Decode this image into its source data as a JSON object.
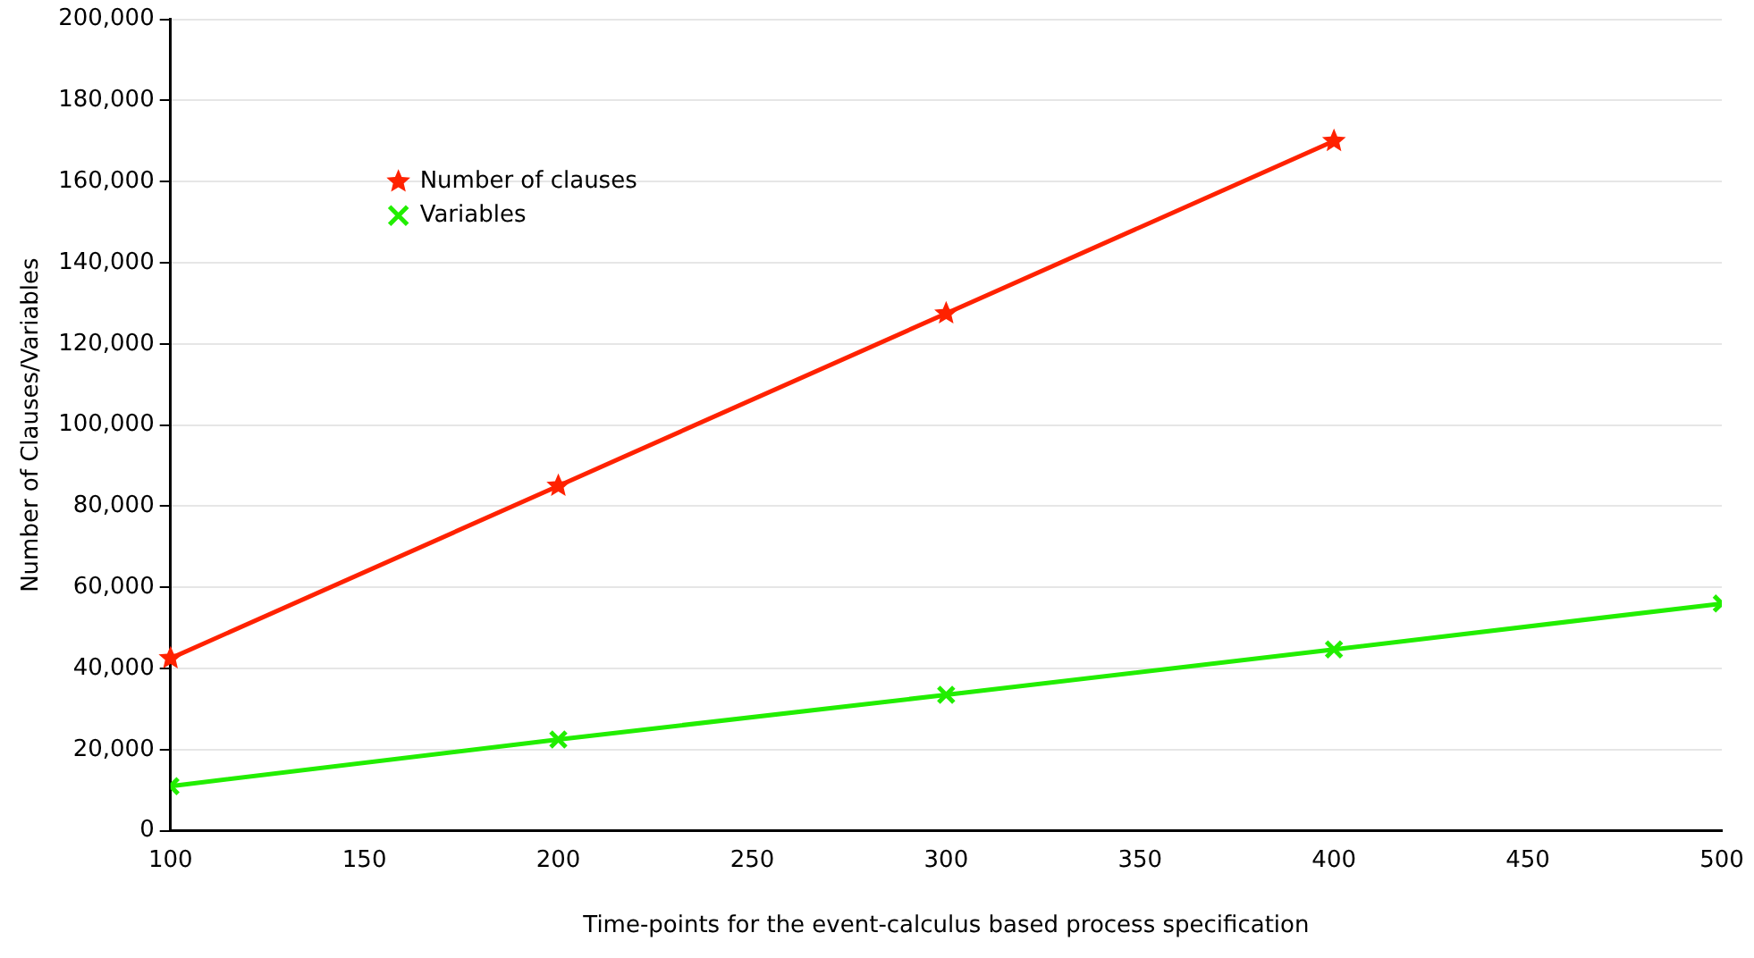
{
  "chart_data": {
    "type": "line",
    "xlabel": "Time-points for the event-calculus based process specification",
    "ylabel": "Number of Clauses/Variables",
    "x": [
      100,
      200,
      300,
      400,
      500
    ],
    "series": [
      {
        "name": "Number of clauses",
        "color": "#ff2200",
        "marker": "star",
        "values": [
          42500,
          85000,
          127500,
          170000,
          null
        ]
      },
      {
        "name": "Variables",
        "color": "#22ee00",
        "marker": "cross",
        "values": [
          11000,
          22500,
          33500,
          44700,
          56000
        ]
      }
    ],
    "xlim": [
      100,
      500
    ],
    "xticks": [
      100,
      150,
      200,
      250,
      300,
      350,
      400,
      450,
      500
    ],
    "ylim": [
      0,
      200000
    ],
    "yticks": [
      0,
      {
        "value": 20000,
        "label": "20,000"
      },
      {
        "value": 40000,
        "label": "40,000"
      },
      {
        "value": 60000,
        "label": "60,000"
      },
      {
        "value": 80000,
        "label": "80,000"
      },
      {
        "value": 100000,
        "label": "100,000"
      },
      {
        "value": 120000,
        "label": "120,000"
      },
      {
        "value": 140000,
        "label": "140,000"
      },
      {
        "value": 160000,
        "label": "160,000"
      },
      {
        "value": 180000,
        "label": "180,000"
      },
      {
        "value": 200000,
        "label": "200,000"
      }
    ],
    "grid": "y",
    "legend": "top left",
    "line_style": "solid"
  }
}
